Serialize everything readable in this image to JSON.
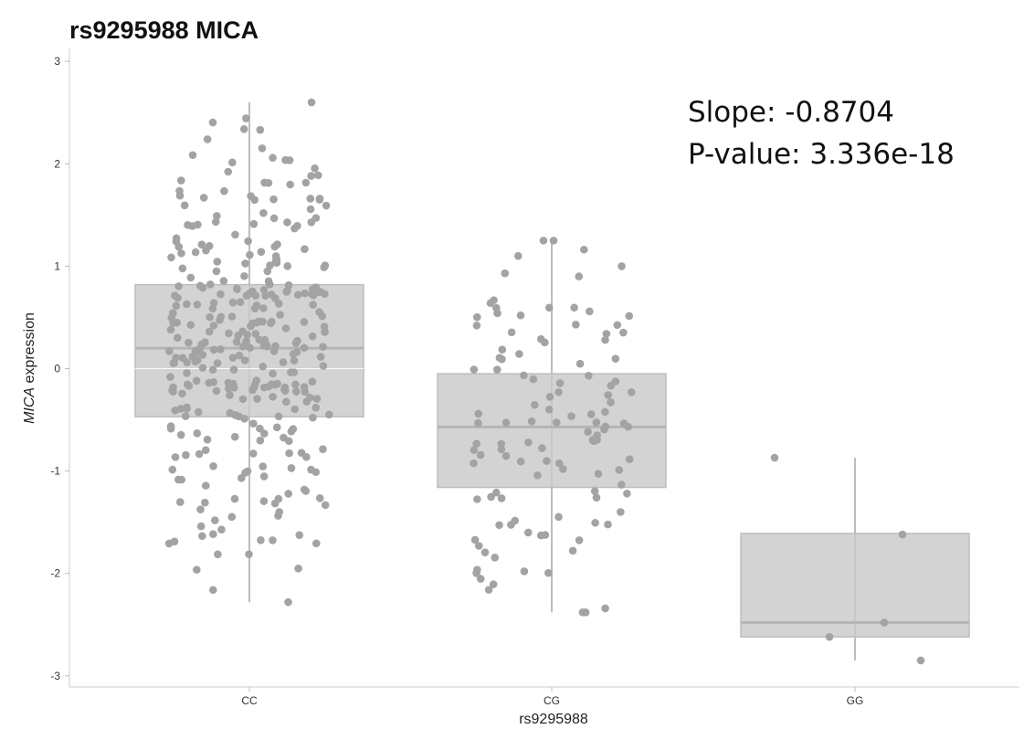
{
  "chart_data": {
    "type": "box",
    "title": "rs9295988 MICA",
    "xlabel": "rs9295988",
    "ylabel_italic": "MICA",
    "ylabel_rest": " expression",
    "ylim": [
      -3.1,
      3.1
    ],
    "yticks": [
      "3",
      "2",
      "1",
      "0",
      "-1",
      "-2",
      "-3"
    ],
    "ytick_values": [
      3,
      2,
      1,
      0,
      -1,
      -2,
      -3
    ],
    "categories": [
      "CC",
      "CG",
      "GG"
    ],
    "annotations": [
      "Slope: -0.8704",
      "P-value: 3.336e-18"
    ],
    "grid": false,
    "colors": {
      "box": "#d3d3d3",
      "box_stroke": "#bdbdbd",
      "points": "#a3a3a3",
      "median": "#b5b5b5",
      "whisker": "#bdbdbd",
      "zero_line": "#ffffff"
    },
    "boxes": [
      {
        "group": "CC",
        "q1": -0.47,
        "median": 0.2,
        "q3": 0.82,
        "whisker_low": -2.28,
        "whisker_high": 2.6,
        "n": 330
      },
      {
        "group": "CG",
        "q1": -1.16,
        "median": -0.57,
        "q3": -0.05,
        "whisker_low": -2.38,
        "whisker_high": 1.25,
        "n": 110
      },
      {
        "group": "GG",
        "q1": -2.62,
        "median": -2.48,
        "q3": -1.61,
        "whisker_low": -2.85,
        "whisker_high": -0.87,
        "n": 5
      }
    ],
    "points": {
      "GG": [
        -0.87,
        -1.62,
        -2.48,
        -2.62,
        -2.85
      ],
      "CG_extremes": [
        1.25,
        1.1,
        0.9,
        -2.16,
        -2.38,
        -1.98
      ]
    }
  }
}
